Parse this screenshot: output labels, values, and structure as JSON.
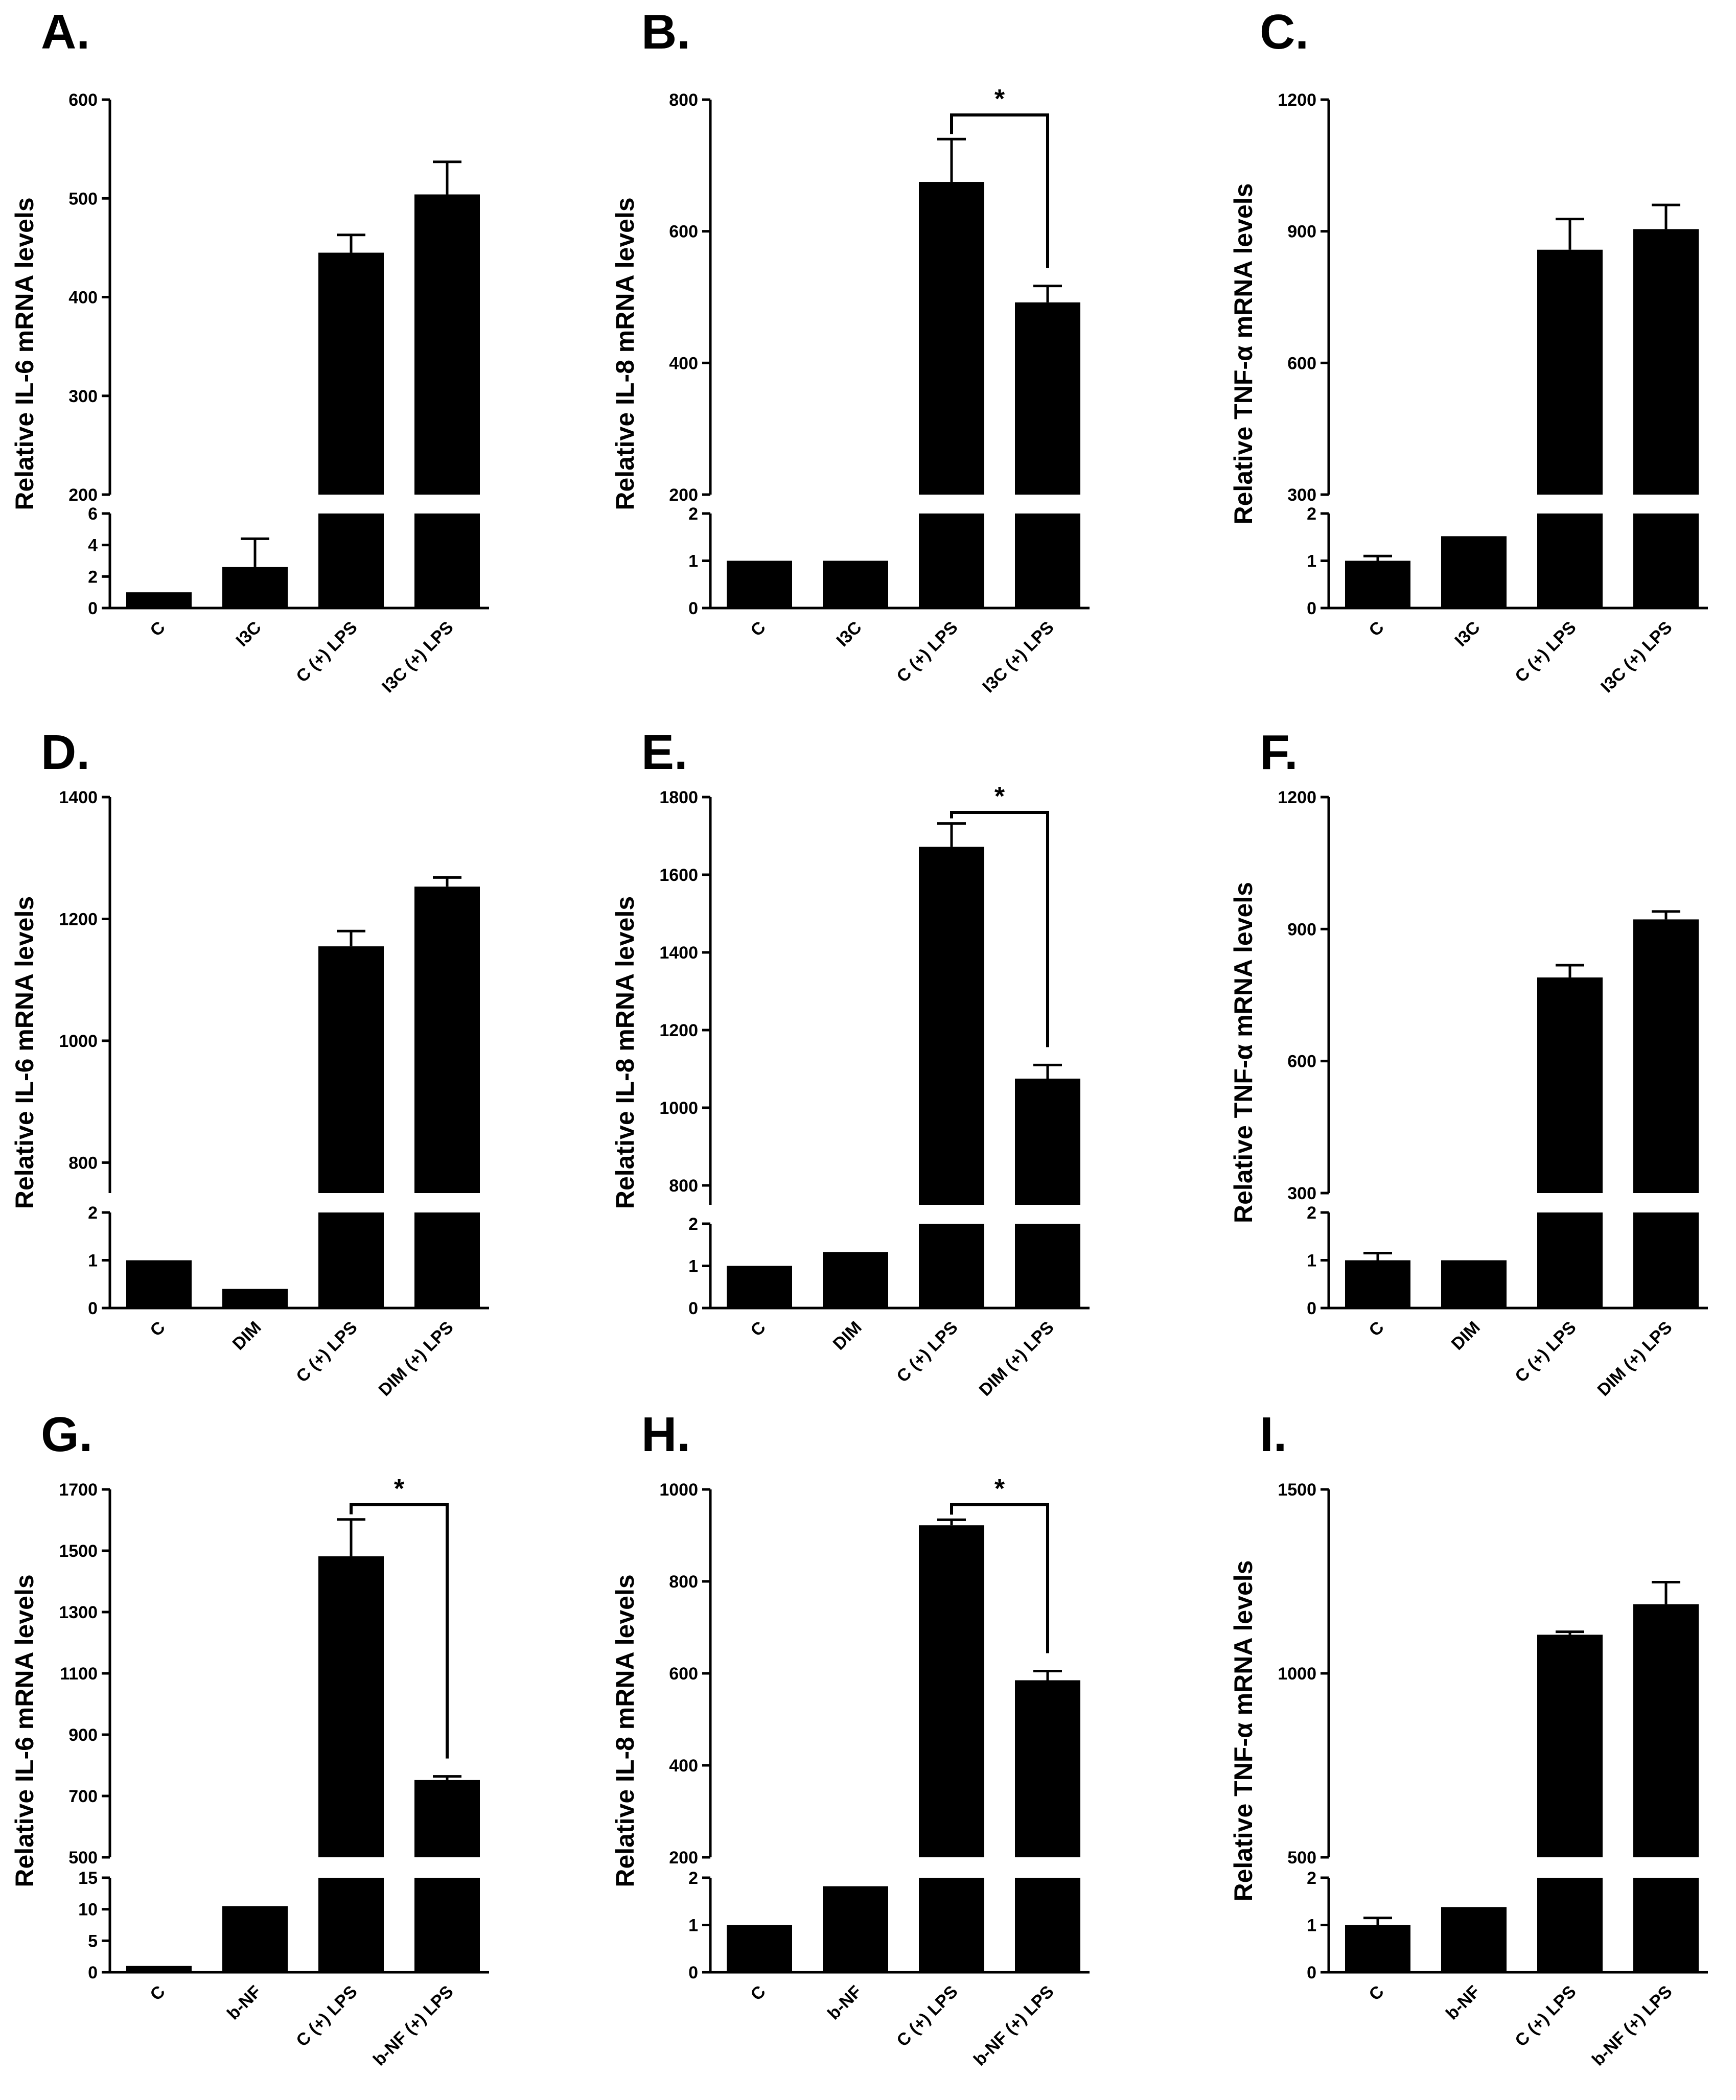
{
  "chart_data": [
    {
      "type": "bar",
      "panel": "A.",
      "ylabel": "Relative IL-6 mRNA levels",
      "categories": [
        "C",
        "I3C",
        "C (+) LPS",
        "I3C (+) LPS"
      ],
      "values": [
        1,
        2.6,
        445,
        504
      ],
      "errors": [
        0.05,
        1.8,
        18,
        33
      ],
      "axis_lower": {
        "range": [
          0,
          6
        ],
        "ticks": [
          0,
          2,
          4,
          6
        ]
      },
      "axis_upper": {
        "range": [
          200,
          600
        ],
        "ticks": [
          200,
          300,
          400,
          500,
          600
        ]
      },
      "significance": null
    },
    {
      "type": "bar",
      "panel": "B.",
      "ylabel": "Relative IL-8 mRNA levels",
      "categories": [
        "C",
        "I3C",
        "C (+) LPS",
        "I3C (+) LPS"
      ],
      "values": [
        1,
        1,
        675,
        492
      ],
      "errors": [
        0.02,
        0.02,
        65,
        25
      ],
      "axis_lower": {
        "range": [
          0,
          2
        ],
        "ticks": [
          0,
          1,
          2
        ]
      },
      "axis_upper": {
        "range": [
          200,
          800
        ],
        "ticks": [
          200,
          400,
          600,
          800
        ]
      },
      "significance": {
        "from": 2,
        "to": 3,
        "label": "*"
      }
    },
    {
      "type": "bar",
      "panel": "C.",
      "ylabel": "Relative TNF-α mRNA levels",
      "categories": [
        "C",
        "I3C",
        "C (+) LPS",
        "I3C (+) LPS"
      ],
      "values": [
        1,
        1.52,
        858,
        905
      ],
      "errors": [
        0.1,
        0.05,
        70,
        55
      ],
      "axis_lower": {
        "range": [
          0,
          2
        ],
        "ticks": [
          0,
          1,
          2
        ]
      },
      "axis_upper": {
        "range": [
          300,
          1200
        ],
        "ticks": [
          300,
          600,
          900,
          1200
        ]
      },
      "significance": null
    },
    {
      "type": "bar",
      "panel": "D.",
      "ylabel": "Relative IL-6 mRNA levels",
      "categories": [
        "C",
        "DIM",
        "C (+) LPS",
        "DIM (+) LPS"
      ],
      "values": [
        1,
        0.4,
        1155,
        1253
      ],
      "errors": [
        0.02,
        0.02,
        25,
        15
      ],
      "axis_lower": {
        "range": [
          0,
          2
        ],
        "ticks": [
          0,
          1,
          2
        ]
      },
      "axis_upper": {
        "range": [
          750,
          1400
        ],
        "ticks": [
          800,
          1000,
          1200,
          1400
        ]
      },
      "significance": null
    },
    {
      "type": "bar",
      "panel": "E.",
      "ylabel": "Relative IL-8 mRNA levels",
      "categories": [
        "C",
        "DIM",
        "C (+) LPS",
        "DIM (+) LPS"
      ],
      "values": [
        1,
        1.33,
        1672,
        1075
      ],
      "errors": [
        0.02,
        0.02,
        60,
        35
      ],
      "axis_lower": {
        "range": [
          0,
          2
        ],
        "ticks": [
          0,
          1,
          2
        ]
      },
      "axis_upper": {
        "range": [
          750,
          1800
        ],
        "ticks": [
          800,
          1000,
          1200,
          1400,
          1600,
          1800
        ]
      },
      "significance": {
        "from": 2,
        "to": 3,
        "label": "*"
      }
    },
    {
      "type": "bar",
      "panel": "F.",
      "ylabel": "Relative TNF-α mRNA levels",
      "categories": [
        "C",
        "DIM",
        "C (+) LPS",
        "DIM (+) LPS"
      ],
      "values": [
        1,
        1,
        790,
        922
      ],
      "errors": [
        0.15,
        0.02,
        28,
        18
      ],
      "axis_lower": {
        "range": [
          0,
          2
        ],
        "ticks": [
          0,
          1,
          2
        ]
      },
      "axis_upper": {
        "range": [
          300,
          1200
        ],
        "ticks": [
          300,
          600,
          900,
          1200
        ]
      },
      "significance": null
    },
    {
      "type": "bar",
      "panel": "G.",
      "ylabel": "Relative IL-6 mRNA levels",
      "categories": [
        "C",
        "b-NF",
        "C (+) LPS",
        "b-NF (+) LPS"
      ],
      "values": [
        1,
        10.5,
        1482,
        752
      ],
      "errors": [
        0.1,
        0.2,
        120,
        12
      ],
      "axis_lower": {
        "range": [
          0,
          15
        ],
        "ticks": [
          0,
          5,
          10,
          15
        ]
      },
      "axis_upper": {
        "range": [
          500,
          1700
        ],
        "ticks": [
          500,
          700,
          900,
          1100,
          1300,
          1500,
          1700
        ]
      },
      "significance": {
        "from": 2,
        "to": 3,
        "label": "*"
      }
    },
    {
      "type": "bar",
      "panel": "H.",
      "ylabel": "Relative IL-8 mRNA levels",
      "categories": [
        "C",
        "b-NF",
        "C (+) LPS",
        "b-NF (+) LPS"
      ],
      "values": [
        1,
        1.82,
        922,
        585
      ],
      "errors": [
        0.01,
        0.02,
        12,
        20
      ],
      "axis_lower": {
        "range": [
          0,
          2
        ],
        "ticks": [
          0,
          1,
          2
        ]
      },
      "axis_upper": {
        "range": [
          200,
          1000
        ],
        "ticks": [
          200,
          400,
          600,
          800,
          1000
        ]
      },
      "significance": {
        "from": 2,
        "to": 3,
        "label": "*"
      }
    },
    {
      "type": "bar",
      "panel": "I.",
      "ylabel": "Relative TNF-α mRNA levels",
      "categories": [
        "C",
        "b-NF",
        "C (+) LPS",
        "b-NF (+) LPS"
      ],
      "values": [
        1,
        1.38,
        1105,
        1188
      ],
      "errors": [
        0.15,
        0.03,
        8,
        60
      ],
      "axis_lower": {
        "range": [
          0,
          2
        ],
        "ticks": [
          0,
          1,
          2
        ]
      },
      "axis_upper": {
        "range": [
          500,
          1500
        ],
        "ticks": [
          500,
          1000,
          1500
        ]
      },
      "significance": null
    }
  ]
}
